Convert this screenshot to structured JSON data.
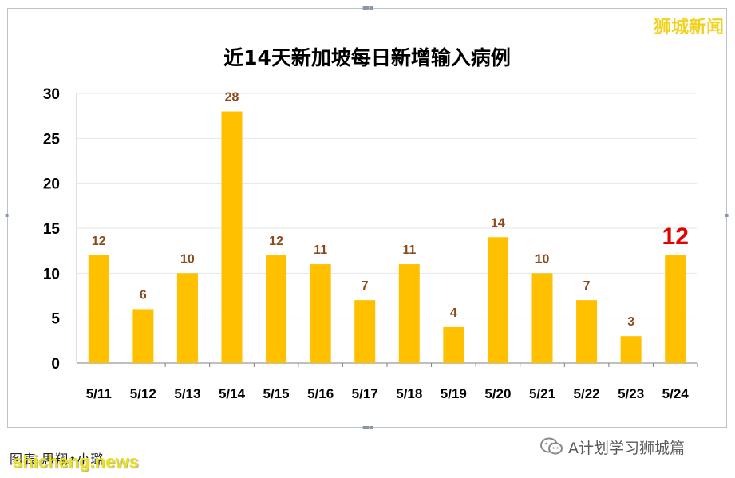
{
  "watermark": "狮城新闻",
  "caption_left": "图表   思翔•小璐",
  "site_mark": "shicheng.news",
  "wechat_label": "A计划学习狮城篇",
  "colors": {
    "bar": "#ffc000",
    "label": "#8b4a1c",
    "highlight": "#e60000",
    "axis_text": "#000000",
    "grid": "#e6e6e6"
  },
  "chart_data": {
    "type": "bar",
    "title": "近14天新加坡每日新增输入病例",
    "xlabel": "",
    "ylabel": "",
    "categories": [
      "5/11",
      "5/12",
      "5/13",
      "5/14",
      "5/15",
      "5/16",
      "5/17",
      "5/18",
      "5/19",
      "5/20",
      "5/21",
      "5/22",
      "5/23",
      "5/24"
    ],
    "values": [
      12,
      6,
      10,
      28,
      12,
      11,
      7,
      11,
      4,
      14,
      10,
      7,
      3,
      12
    ],
    "ylim": [
      0,
      30
    ],
    "yticks": [
      0,
      5,
      10,
      15,
      20,
      25,
      30
    ],
    "highlight_last": true,
    "grid": true,
    "legend": "none"
  }
}
